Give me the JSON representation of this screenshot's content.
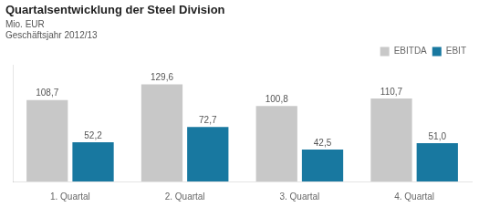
{
  "chart_data": {
    "type": "bar",
    "title": "Quartalsentwicklung der Steel Division",
    "subtitle": [
      "Mio. EUR",
      "Geschäftsjahr 2012/13"
    ],
    "categories": [
      "1. Quartal",
      "2. Quartal",
      "3. Quartal",
      "4. Quartal"
    ],
    "series": [
      {
        "name": "EBITDA",
        "color": "#c8c8c8",
        "values": [
          108.7,
          129.6,
          100.8,
          110.7
        ],
        "value_labels": [
          "108,7",
          "129,6",
          "100,8",
          "110,7"
        ]
      },
      {
        "name": "EBIT",
        "color": "#1878a0",
        "values": [
          52.2,
          72.7,
          42.5,
          51.0
        ],
        "value_labels": [
          "52,2",
          "72,7",
          "42,5",
          "51,0"
        ]
      }
    ],
    "ylim": [
      0,
      155
    ],
    "grid": false,
    "legend": "upper right",
    "data_labels": true,
    "tick_labels": "x"
  }
}
